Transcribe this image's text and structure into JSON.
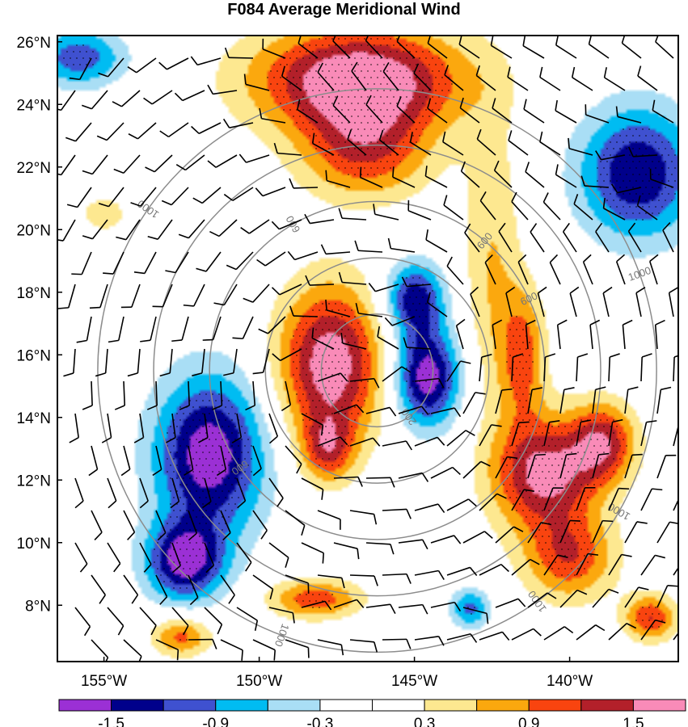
{
  "chart_data": {
    "type": "heatmap",
    "title": "F084 Average Meridional Wind",
    "x_ticks": [
      "155°W",
      "150°W",
      "145°W",
      "140°W"
    ],
    "x_tick_values": [
      -155,
      -150,
      -145,
      -140
    ],
    "y_ticks": [
      "26°N",
      "24°N",
      "22°N",
      "20°N",
      "18°N",
      "16°N",
      "14°N",
      "12°N",
      "10°N",
      "8°N"
    ],
    "y_tick_values": [
      26,
      24,
      22,
      20,
      18,
      16,
      14,
      12,
      10,
      8
    ],
    "xlim": [
      -156.5,
      -136.5
    ],
    "ylim": [
      6.2,
      26.2
    ],
    "levels": [
      -1.8,
      -1.5,
      -1.2,
      -0.9,
      -0.6,
      -0.3,
      0,
      0.3,
      0.6,
      0.9,
      1.2,
      1.5,
      1.8
    ],
    "colorbar_labels": [
      "-1.5",
      "-0.9",
      "-0.3",
      "0.3",
      "0.9",
      "1.5"
    ],
    "colorbar_label_values": [
      -1.5,
      -0.9,
      -0.3,
      0.3,
      0.9,
      1.5
    ],
    "colors": [
      "#9b30d5",
      "#00008b",
      "#3f51d0",
      "#00bcf2",
      "#a9def5",
      "#ffffff",
      "#ffffff",
      "#fde890",
      "#fba80e",
      "#f9440f",
      "#b3202a",
      "#f98bb8"
    ],
    "blobs": [
      {
        "lon": -147.7,
        "lat": 15.7,
        "rx": 1.6,
        "ry": 2.4,
        "value": 1.75
      },
      {
        "lon": -147.8,
        "lat": 13.0,
        "rx": 0.8,
        "ry": 1.0,
        "value": 1.0
      },
      {
        "lon": -144.6,
        "lat": 15.3,
        "rx": 1.0,
        "ry": 1.5,
        "value": -1.75
      },
      {
        "lon": -145.0,
        "lat": 17.8,
        "rx": 0.9,
        "ry": 1.1,
        "value": -1.4
      },
      {
        "lon": -151.6,
        "lat": 12.8,
        "rx": 1.7,
        "ry": 2.4,
        "value": -1.75
      },
      {
        "lon": -152.4,
        "lat": 9.4,
        "rx": 1.2,
        "ry": 1.2,
        "value": -1.6
      },
      {
        "lon": -146.8,
        "lat": 24.8,
        "rx": 3.2,
        "ry": 1.6,
        "value": 1.9
      },
      {
        "lon": -146.6,
        "lat": 22.5,
        "rx": 2.0,
        "ry": 1.5,
        "value": 1.1
      },
      {
        "lon": -140.8,
        "lat": 12.2,
        "rx": 1.6,
        "ry": 1.7,
        "value": 1.65
      },
      {
        "lon": -138.9,
        "lat": 13.2,
        "rx": 1.0,
        "ry": 1.2,
        "value": 1.3
      },
      {
        "lon": -140.0,
        "lat": 9.5,
        "rx": 1.4,
        "ry": 1.3,
        "value": 1.1
      },
      {
        "lon": -141.5,
        "lat": 16.0,
        "rx": 0.7,
        "ry": 2.0,
        "value": 1.0
      },
      {
        "lon": -142.5,
        "lat": 19.0,
        "rx": 0.9,
        "ry": 4.5,
        "value": 0.6
      },
      {
        "lon": -137.8,
        "lat": 21.8,
        "rx": 1.8,
        "ry": 2.0,
        "value": -1.5
      },
      {
        "lon": -155.8,
        "lat": 25.5,
        "rx": 1.4,
        "ry": 0.9,
        "value": -1.1
      },
      {
        "lon": -148.2,
        "lat": 8.2,
        "rx": 1.4,
        "ry": 0.6,
        "value": 1.1
      },
      {
        "lon": -143.2,
        "lat": 7.9,
        "rx": 0.6,
        "ry": 0.6,
        "value": -1.0
      },
      {
        "lon": -152.5,
        "lat": 7.0,
        "rx": 0.9,
        "ry": 0.6,
        "value": 1.0
      },
      {
        "lon": -137.4,
        "lat": 7.6,
        "rx": 0.8,
        "ry": 0.7,
        "value": 1.2
      },
      {
        "lon": -155.0,
        "lat": 20.5,
        "rx": 1.0,
        "ry": 0.8,
        "value": 0.4
      }
    ],
    "isobars": [
      {
        "value": 200,
        "radius_deg": 1.8,
        "label": "200"
      },
      {
        "value": 400,
        "radius_deg": 3.6,
        "label": ""
      },
      {
        "value": 600,
        "radius_deg": 5.4,
        "label": "600"
      },
      {
        "value": 800,
        "radius_deg": 7.2,
        "label": ""
      },
      {
        "value": 1000,
        "radius_deg": 9.0,
        "label": "1000"
      }
    ],
    "isobar_center": {
      "lon": -146.2,
      "lat": 15.5
    },
    "isobar_labels": [
      "1000",
      "1000",
      "600",
      "600",
      "200",
      "600",
      "1000",
      "600",
      "1000",
      "1000"
    ]
  }
}
